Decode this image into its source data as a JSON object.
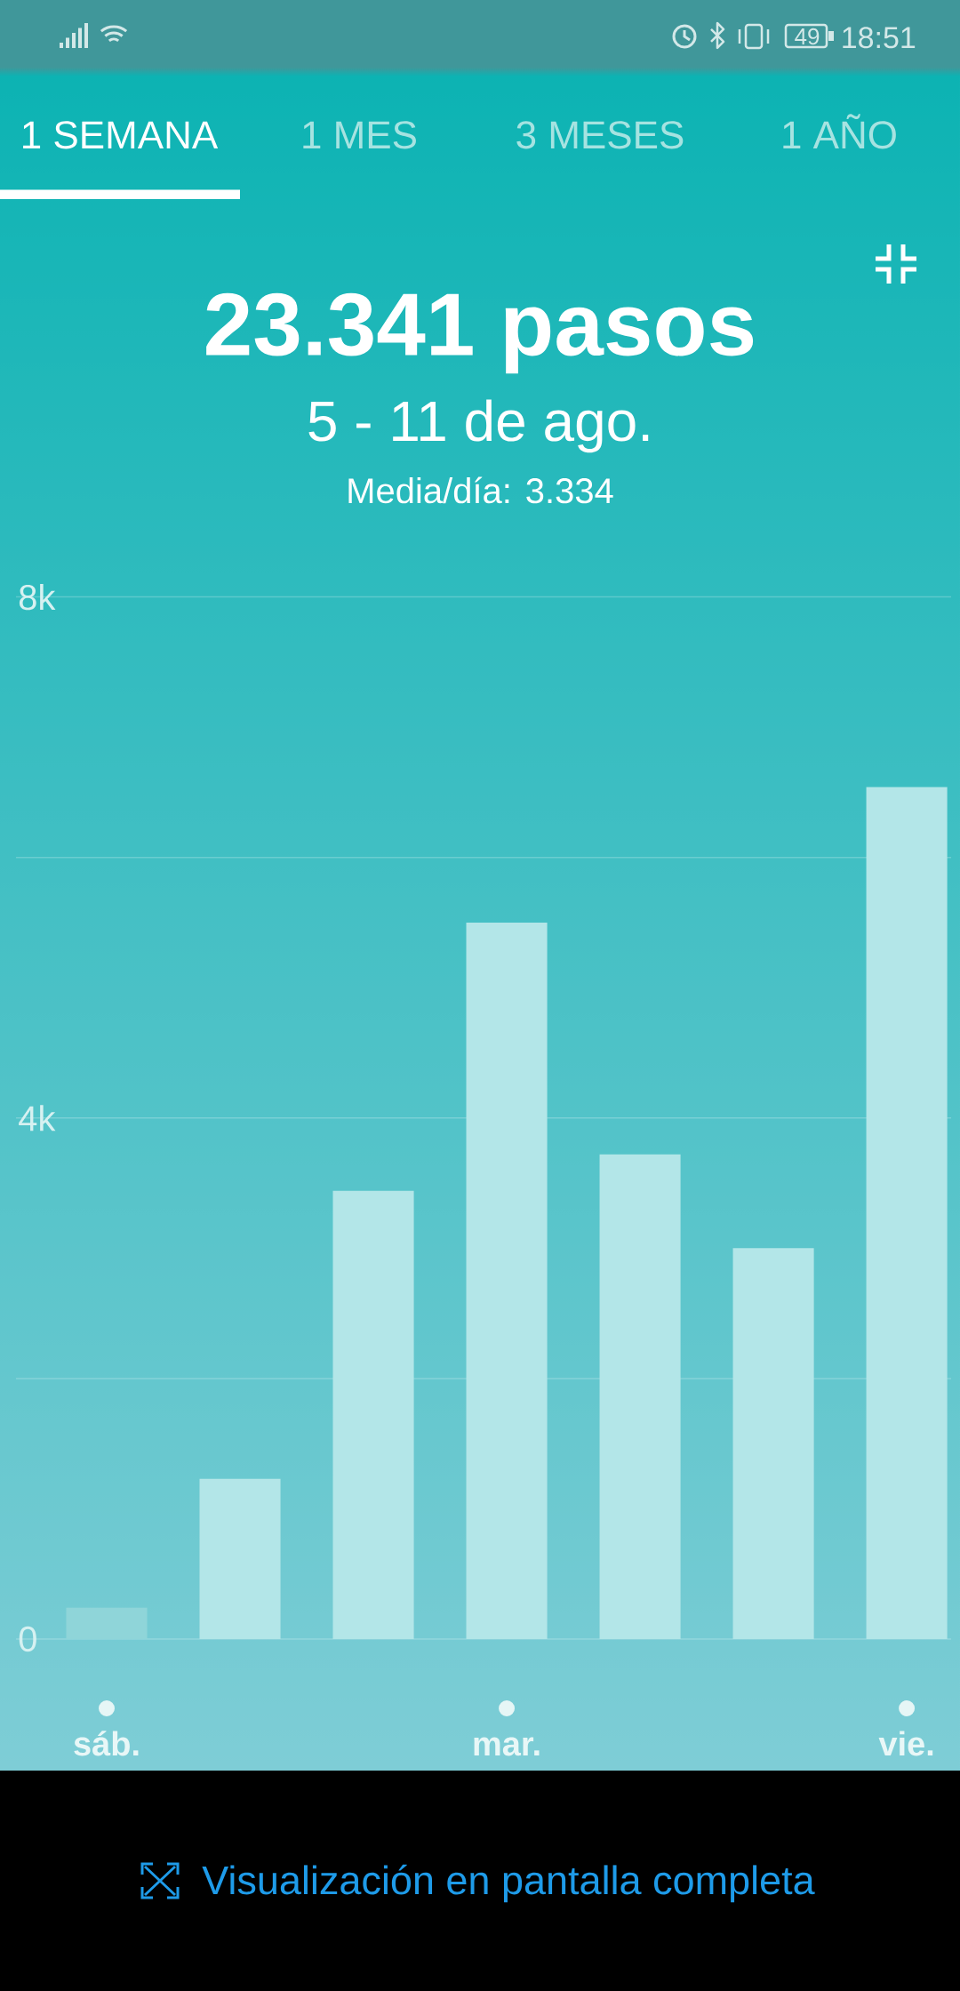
{
  "chart_data": {
    "type": "bar",
    "title": "23.341 pasos",
    "subtitle": "5 - 11 de ago.",
    "annotations": [
      "1 SEMANA",
      "1 MES",
      "3 MESES",
      "1 AÑO",
      "Media/día: 3.334",
      "Visualización en pantalla completa",
      "18:51",
      "49"
    ],
    "categories": [
      "sáb.",
      null,
      null,
      "mar.",
      null,
      null,
      "vie."
    ],
    "values": [
      240,
      1230,
      3440,
      5500,
      3720,
      3000,
      6540
    ],
    "colors": [
      "#8fd5d9",
      "#b3e6e8",
      "#b3e6e8",
      "#b3e6e8",
      "#b3e6e8",
      "#b3e6e8",
      "#b3e6e8"
    ],
    "ylim": [
      0,
      8000
    ],
    "yticks": [
      0,
      {
        "value": 2000,
        "label": null
      },
      {
        "value": 4000,
        "label": "4k"
      },
      {
        "value": 6000,
        "label": null
      },
      {
        "value": 8000,
        "label": "8k"
      }
    ],
    "grid": "y"
  }
}
